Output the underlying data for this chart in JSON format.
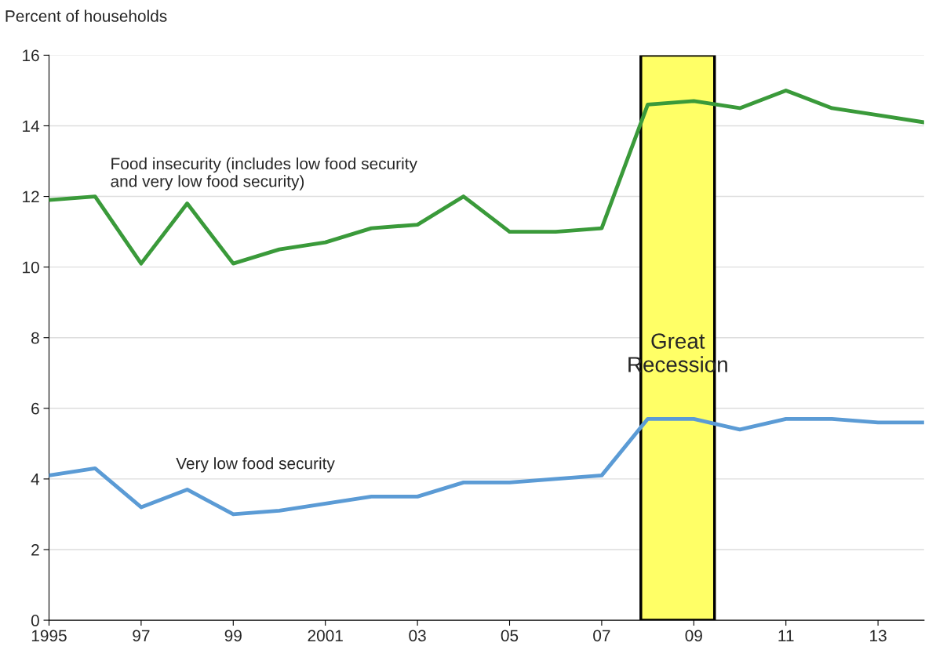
{
  "chart_data": {
    "type": "line",
    "ylabel": "Percent of households",
    "x": [
      1995,
      1996,
      1997,
      1998,
      1999,
      2000,
      2001,
      2002,
      2003,
      2004,
      2005,
      2006,
      2007,
      2008,
      2009,
      2010,
      2011,
      2012,
      2013,
      2014
    ],
    "series": [
      {
        "name": "Food insecurity (includes low food security\nand very low food security)",
        "color": "#3a9a3a",
        "values": [
          11.9,
          12.0,
          10.1,
          11.8,
          10.1,
          10.5,
          10.7,
          11.1,
          11.2,
          12.0,
          11.0,
          11.0,
          11.1,
          14.6,
          14.7,
          14.5,
          15.0,
          14.5,
          14.3,
          14.1
        ]
      },
      {
        "name": "Very low food security",
        "color": "#5b9bd5",
        "values": [
          4.1,
          4.3,
          3.2,
          3.7,
          3.0,
          3.1,
          3.3,
          3.5,
          3.5,
          3.9,
          3.9,
          4.0,
          4.1,
          5.7,
          5.7,
          5.4,
          5.7,
          5.7,
          5.6,
          5.6
        ]
      }
    ],
    "xlim": [
      1995,
      2014
    ],
    "xticks": [
      1995,
      {
        "value": 1997,
        "label": "97"
      },
      {
        "value": 1999,
        "label": "99"
      },
      2001,
      {
        "value": 2003,
        "label": "03"
      },
      {
        "value": 2005,
        "label": "05"
      },
      {
        "value": 2007,
        "label": "07"
      },
      {
        "value": 2009,
        "label": "09"
      },
      {
        "value": 2011,
        "label": "11"
      },
      {
        "value": 2013,
        "label": "13"
      }
    ],
    "ylim": [
      0,
      16
    ],
    "yticks": [
      0,
      2,
      4,
      6,
      8,
      10,
      12,
      14,
      16
    ],
    "bands": [
      {
        "axis": "x",
        "from": 2007.85,
        "to": 2009.45,
        "label": "Great\nRecession",
        "color": "#ffff66"
      }
    ],
    "grid": "y",
    "legend": false,
    "marker": "none",
    "line_style": "solid"
  }
}
